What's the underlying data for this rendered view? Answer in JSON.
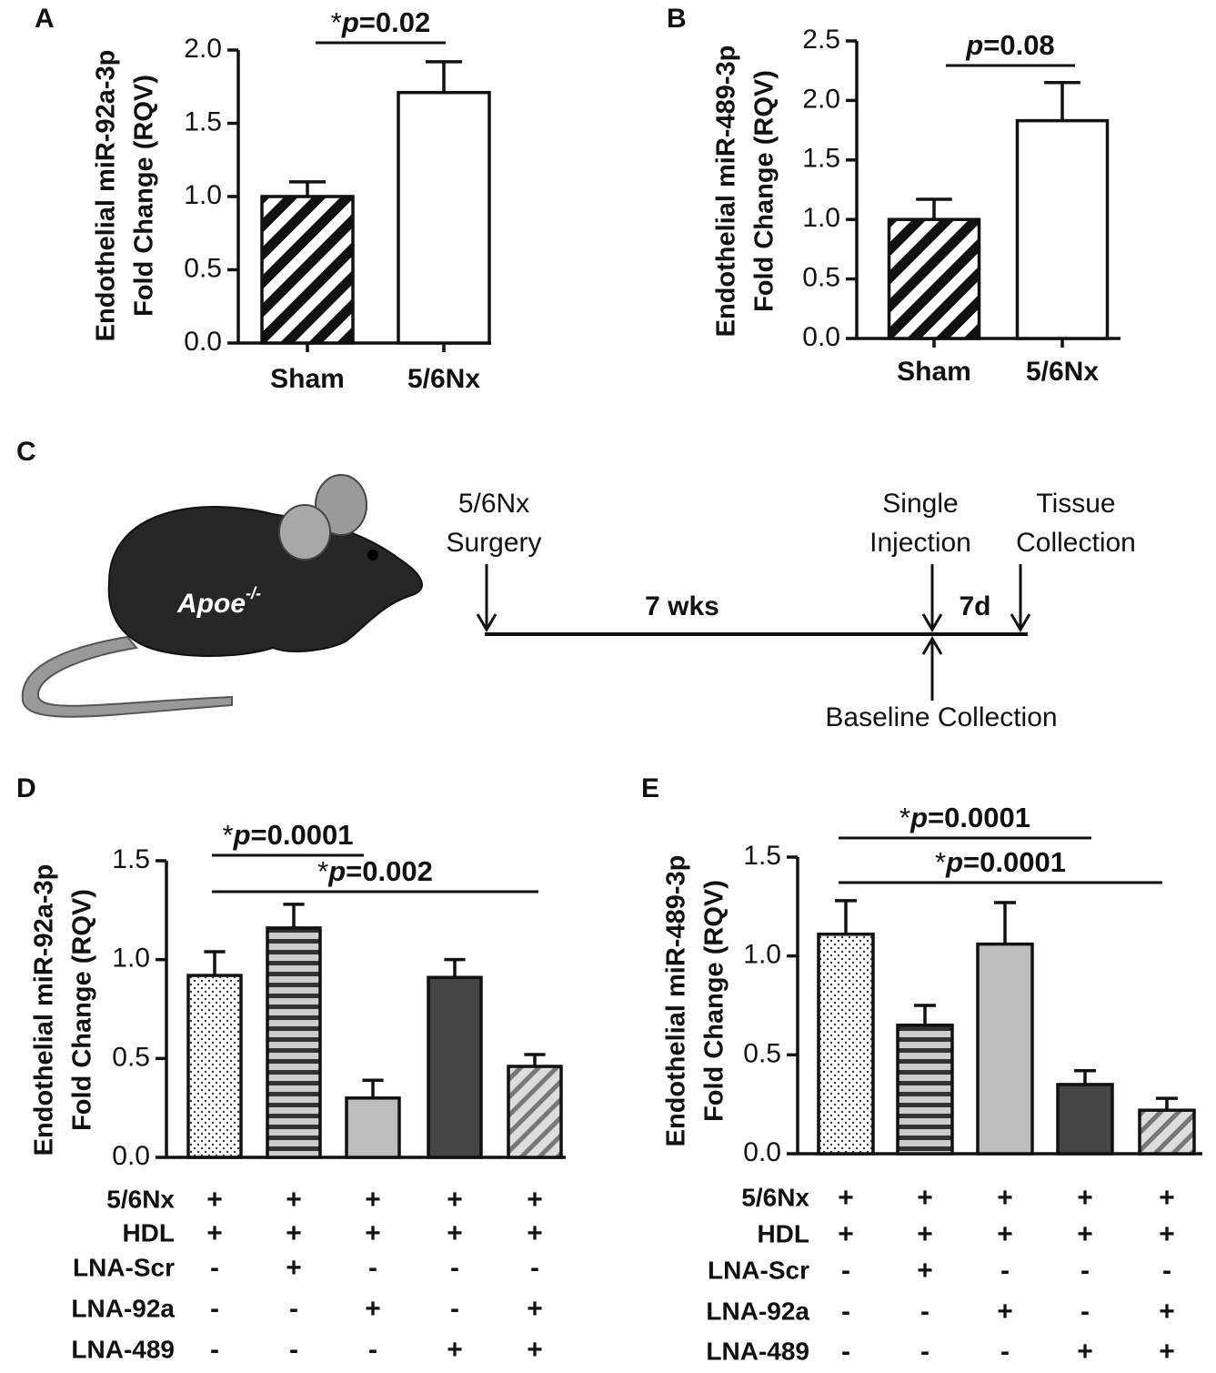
{
  "chart_data": [
    {
      "type": "bar",
      "panel_label": "A",
      "ylabel": [
        "Endothelial miR-92a-3p",
        "Fold Change (RQV)"
      ],
      "categories": [
        "Sham",
        "5/6Nx"
      ],
      "values": [
        1.0,
        1.71
      ],
      "errors": [
        0.1,
        0.21
      ],
      "patterns": [
        "hatch",
        "white"
      ],
      "ylim": [
        0,
        2
      ],
      "yticks": [
        {
          "value": 0,
          "label": "0.0"
        },
        {
          "value": 0.5,
          "label": "0.5"
        },
        {
          "value": 1,
          "label": "1.0"
        },
        {
          "value": 1.5,
          "label": "1.5"
        },
        {
          "value": 2,
          "label": "2.0"
        }
      ],
      "annotations": [
        "*p=0.02"
      ]
    },
    {
      "type": "bar",
      "panel_label": "B",
      "ylabel": [
        "Endothelial miR-489-3p",
        "Fold Change (RQV)"
      ],
      "categories": [
        "Sham",
        "5/6Nx"
      ],
      "values": [
        1.0,
        1.83
      ],
      "errors": [
        0.17,
        0.32
      ],
      "patterns": [
        "hatch",
        "white"
      ],
      "ylim": [
        0,
        2.5
      ],
      "yticks": [
        {
          "value": 0,
          "label": "0.0"
        },
        {
          "value": 0.5,
          "label": "0.5"
        },
        {
          "value": 1,
          "label": "1.0"
        },
        {
          "value": 1.5,
          "label": "1.5"
        },
        {
          "value": 2,
          "label": "2.0"
        },
        {
          "value": 2.5,
          "label": "2.5"
        }
      ],
      "annotations": [
        "p=0.08"
      ]
    },
    {
      "type": "bar",
      "panel_label": "D",
      "ylabel": [
        "Endothelial miR-92a-3p",
        "Fold Change (RQV)"
      ],
      "values": [
        0.92,
        1.16,
        0.3,
        0.91,
        0.46
      ],
      "errors": [
        0.12,
        0.12,
        0.09,
        0.09,
        0.06
      ],
      "patterns": [
        "dots",
        "stripes",
        "light",
        "dark",
        "diag"
      ],
      "ylim": [
        0,
        1.5
      ],
      "yticks": [
        {
          "value": 0,
          "label": "0.0"
        },
        {
          "value": 0.5,
          "label": "0.5"
        },
        {
          "value": 1,
          "label": "1.0"
        },
        {
          "value": 1.5,
          "label": "1.5"
        }
      ],
      "annotations": [
        "*p=0.0001",
        "*p=0.002"
      ],
      "treatments": {
        "labels": [
          "5/6Nx",
          "HDL",
          "LNA-Scr",
          "LNA-92a",
          "LNA-489"
        ],
        "rows": [
          [
            "+",
            "+",
            "+",
            "+",
            "+"
          ],
          [
            "+",
            "+",
            "+",
            "+",
            "+"
          ],
          [
            "-",
            "+",
            "-",
            "-",
            "-"
          ],
          [
            "-",
            "-",
            "+",
            "-",
            "+"
          ],
          [
            "-",
            "-",
            "-",
            "+",
            "+"
          ]
        ]
      }
    },
    {
      "type": "bar",
      "panel_label": "E",
      "ylabel": [
        "Endothelial miR-489-3p",
        "Fold Change (RQV)"
      ],
      "values": [
        1.11,
        0.65,
        1.06,
        0.35,
        0.22
      ],
      "errors": [
        0.17,
        0.1,
        0.21,
        0.07,
        0.06
      ],
      "patterns": [
        "dots",
        "stripes",
        "light",
        "dark",
        "diag"
      ],
      "ylim": [
        0,
        1.5
      ],
      "yticks": [
        {
          "value": 0,
          "label": "0.0"
        },
        {
          "value": 0.5,
          "label": "0.5"
        },
        {
          "value": 1,
          "label": "1.0"
        },
        {
          "value": 1.5,
          "label": "1.5"
        }
      ],
      "annotations": [
        "*p=0.0001",
        "*p=0.0001"
      ],
      "treatments": {
        "labels": [
          "5/6Nx",
          "HDL",
          "LNA-Scr",
          "LNA-92a",
          "LNA-489"
        ],
        "rows": [
          [
            "+",
            "+",
            "+",
            "+",
            "+"
          ],
          [
            "+",
            "+",
            "+",
            "+",
            "+"
          ],
          [
            "-",
            "+",
            "-",
            "-",
            "-"
          ],
          [
            "-",
            "-",
            "+",
            "-",
            "+"
          ],
          [
            "-",
            "-",
            "-",
            "+",
            "+"
          ]
        ]
      }
    }
  ],
  "panel_c": {
    "label": "C",
    "mouse_label": "Apoe",
    "mouse_superscript": "-/-",
    "surgery": [
      "5/6Nx",
      "Surgery"
    ],
    "injection": [
      "Single",
      "Injection"
    ],
    "tissue": [
      "Tissue",
      "Collection"
    ],
    "period_1": "7 wks",
    "period_2": "7d",
    "baseline": "Baseline Collection"
  }
}
